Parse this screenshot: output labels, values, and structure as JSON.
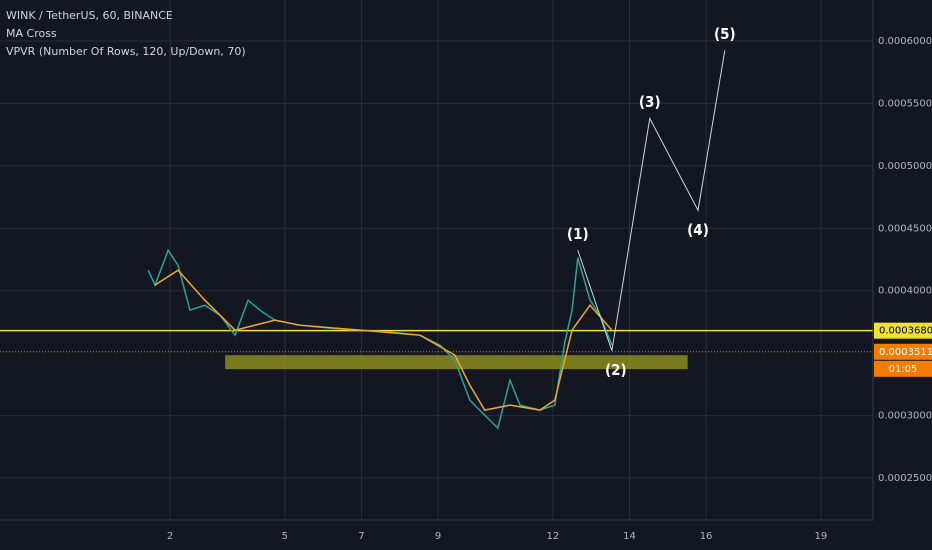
{
  "chart_data": {
    "type": "line",
    "title": "WINK / TetherUS, 60, BINANCE",
    "indicators": [
      "MA Cross",
      "VPVR (Number Of Rows, 120, Up/Down, 70)"
    ],
    "x": [
      1.43,
      1.61,
      1.95,
      2.21,
      2.52,
      2.91,
      3.31,
      3.7,
      4.04,
      4.35,
      4.74,
      5.39,
      6.18,
      6.96,
      7.74,
      8.53,
      9.05,
      9.44,
      9.83,
      10.22,
      10.56,
      10.88,
      11.14,
      11.66,
      12.05,
      12.31,
      12.5,
      12.65,
      12.97,
      13.23,
      13.54
    ],
    "values": [
      0.0004164,
      0.0004044,
      0.0004324,
      0.0004204,
      0.0003844,
      0.0003884,
      0.0003804,
      0.0003644,
      0.0003924,
      0.0003844,
      0.0003764,
      0.0003724,
      0.00037,
      0.0003684,
      0.0003668,
      0.0003644,
      0.0003564,
      0.0003444,
      0.0003124,
      0.0003004,
      0.00029,
      0.0003284,
      0.0003084,
      0.0003044,
      0.0003084,
      0.0003584,
      0.0003844,
      0.0004264,
      0.0003924,
      0.0003804,
      0.0003564
    ],
    "color": "#26a69a",
    "ma_x": [
      1.6,
      2.21,
      2.91,
      3.7,
      4.74,
      5.39,
      6.96,
      8.53,
      9.44,
      9.83,
      10.22,
      10.88,
      11.66,
      12.05,
      12.5,
      12.97,
      13.54
    ],
    "ma_values": [
      0.0004044,
      0.0004164,
      0.0003924,
      0.0003684,
      0.0003764,
      0.0003724,
      0.0003684,
      0.0003644,
      0.0003484,
      0.0003244,
      0.0003044,
      0.0003084,
      0.0003044,
      0.0003124,
      0.0003684,
      0.0003884,
      0.0003684
    ],
    "ma_color": "#f5a623",
    "waves": {
      "labels": [
        "(1)",
        "(2)",
        "(3)",
        "(4)",
        "(5)"
      ],
      "x": [
        12.65,
        13.54,
        14.53,
        15.79,
        16.49
      ],
      "values": [
        0.0004324,
        0.000352,
        0.000538,
        0.0004644,
        0.0005924
      ],
      "color": "#d1d4dc"
    },
    "zone": {
      "from": 0.0003484,
      "to": 0.0003372,
      "x_from": 3.44,
      "x_to": 15.52,
      "color": "#8c8c1a"
    },
    "levels": [
      {
        "value": 0.000368,
        "label": "0.0003680",
        "color": "#f0e130",
        "style": "solid"
      },
      {
        "value": 0.0003511,
        "label": "0.0003511",
        "color": "#f57c00",
        "style": "dotted"
      }
    ],
    "countdown": "01:05",
    "xlim": [
      -2.44,
      20.36
    ],
    "ylim": [
      0.0002164,
      0.0006328
    ],
    "xticks": [
      2,
      5,
      7,
      9,
      12,
      14,
      16,
      19
    ],
    "yticks": [
      {
        "value": 0.00025,
        "label": "0.0002500"
      },
      {
        "value": 0.0003,
        "label": "0.0003000"
      },
      {
        "value": 0.0004,
        "label": "0.0004000"
      },
      {
        "value": 0.00045,
        "label": "0.0004500"
      },
      {
        "value": 0.0005,
        "label": "0.0005000"
      },
      {
        "value": 0.00055,
        "label": "0.0005500"
      },
      {
        "value": 0.0006,
        "label": "0.0006000"
      }
    ],
    "grid": true
  }
}
